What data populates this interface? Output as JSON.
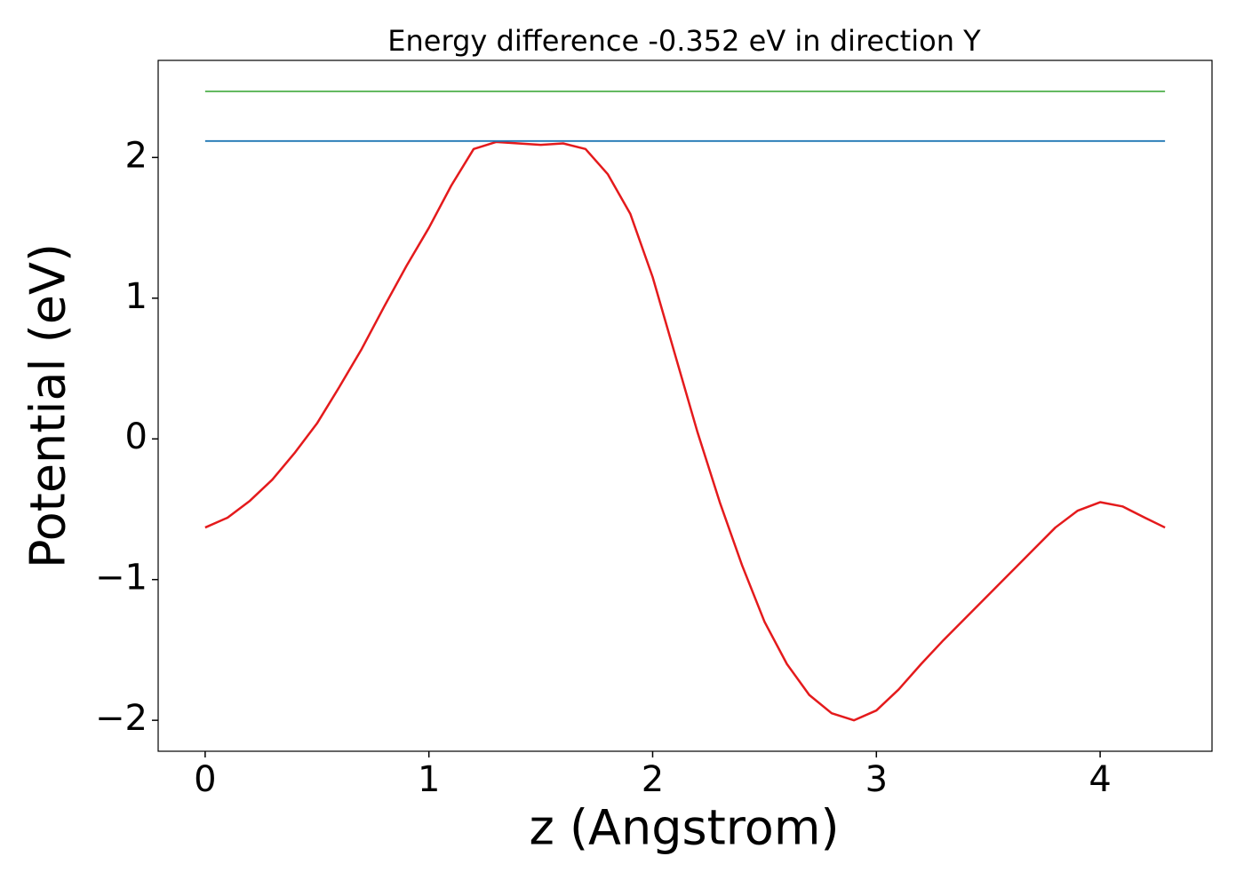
{
  "chart_data": {
    "type": "line",
    "title": "Energy difference -0.352 eV in direction Y",
    "xlabel": "z (Angstrom)",
    "ylabel": "Potential (eV)",
    "xlim": [
      -0.21,
      4.5
    ],
    "ylim": [
      -2.22,
      2.69
    ],
    "xticks": [
      0,
      1,
      2,
      3,
      4
    ],
    "yticks": [
      {
        "value": -2,
        "label": "−2"
      },
      {
        "value": -1,
        "label": "−1"
      },
      0,
      1,
      2
    ],
    "series": [
      {
        "color": "#e41a1c",
        "x": [
          0,
          0.1,
          0.2,
          0.3,
          0.4,
          0.5,
          0.6,
          0.7,
          0.8,
          0.9,
          1.0,
          1.1,
          1.2,
          1.3,
          1.4,
          1.5,
          1.6,
          1.7,
          1.8,
          1.9,
          2.0,
          2.1,
          2.2,
          2.3,
          2.4,
          2.5,
          2.6,
          2.7,
          2.8,
          2.9,
          3.0,
          3.1,
          3.2,
          3.3,
          3.4,
          3.5,
          3.6,
          3.7,
          3.8,
          3.9,
          4.0,
          4.1,
          4.2,
          4.29
        ],
        "values": [
          -0.63,
          -0.56,
          -0.44,
          -0.29,
          -0.1,
          0.11,
          0.37,
          0.64,
          0.94,
          1.23,
          1.5,
          1.8,
          2.06,
          2.11,
          2.1,
          2.09,
          2.1,
          2.06,
          1.88,
          1.6,
          1.15,
          0.6,
          0.05,
          -0.45,
          -0.9,
          -1.3,
          -1.6,
          -1.82,
          -1.95,
          -2.0,
          -1.93,
          -1.78,
          -1.6,
          -1.43,
          -1.27,
          -1.11,
          -0.95,
          -0.79,
          -0.63,
          -0.51,
          -0.45,
          -0.48,
          -0.56,
          -0.63
        ]
      },
      {
        "color": "#1f77b4",
        "x": [
          0,
          4.29
        ],
        "values": [
          2.117,
          2.117
        ]
      },
      {
        "color": "#4daf4a",
        "x": [
          0,
          4.29
        ],
        "values": [
          2.47,
          2.47
        ]
      }
    ]
  }
}
